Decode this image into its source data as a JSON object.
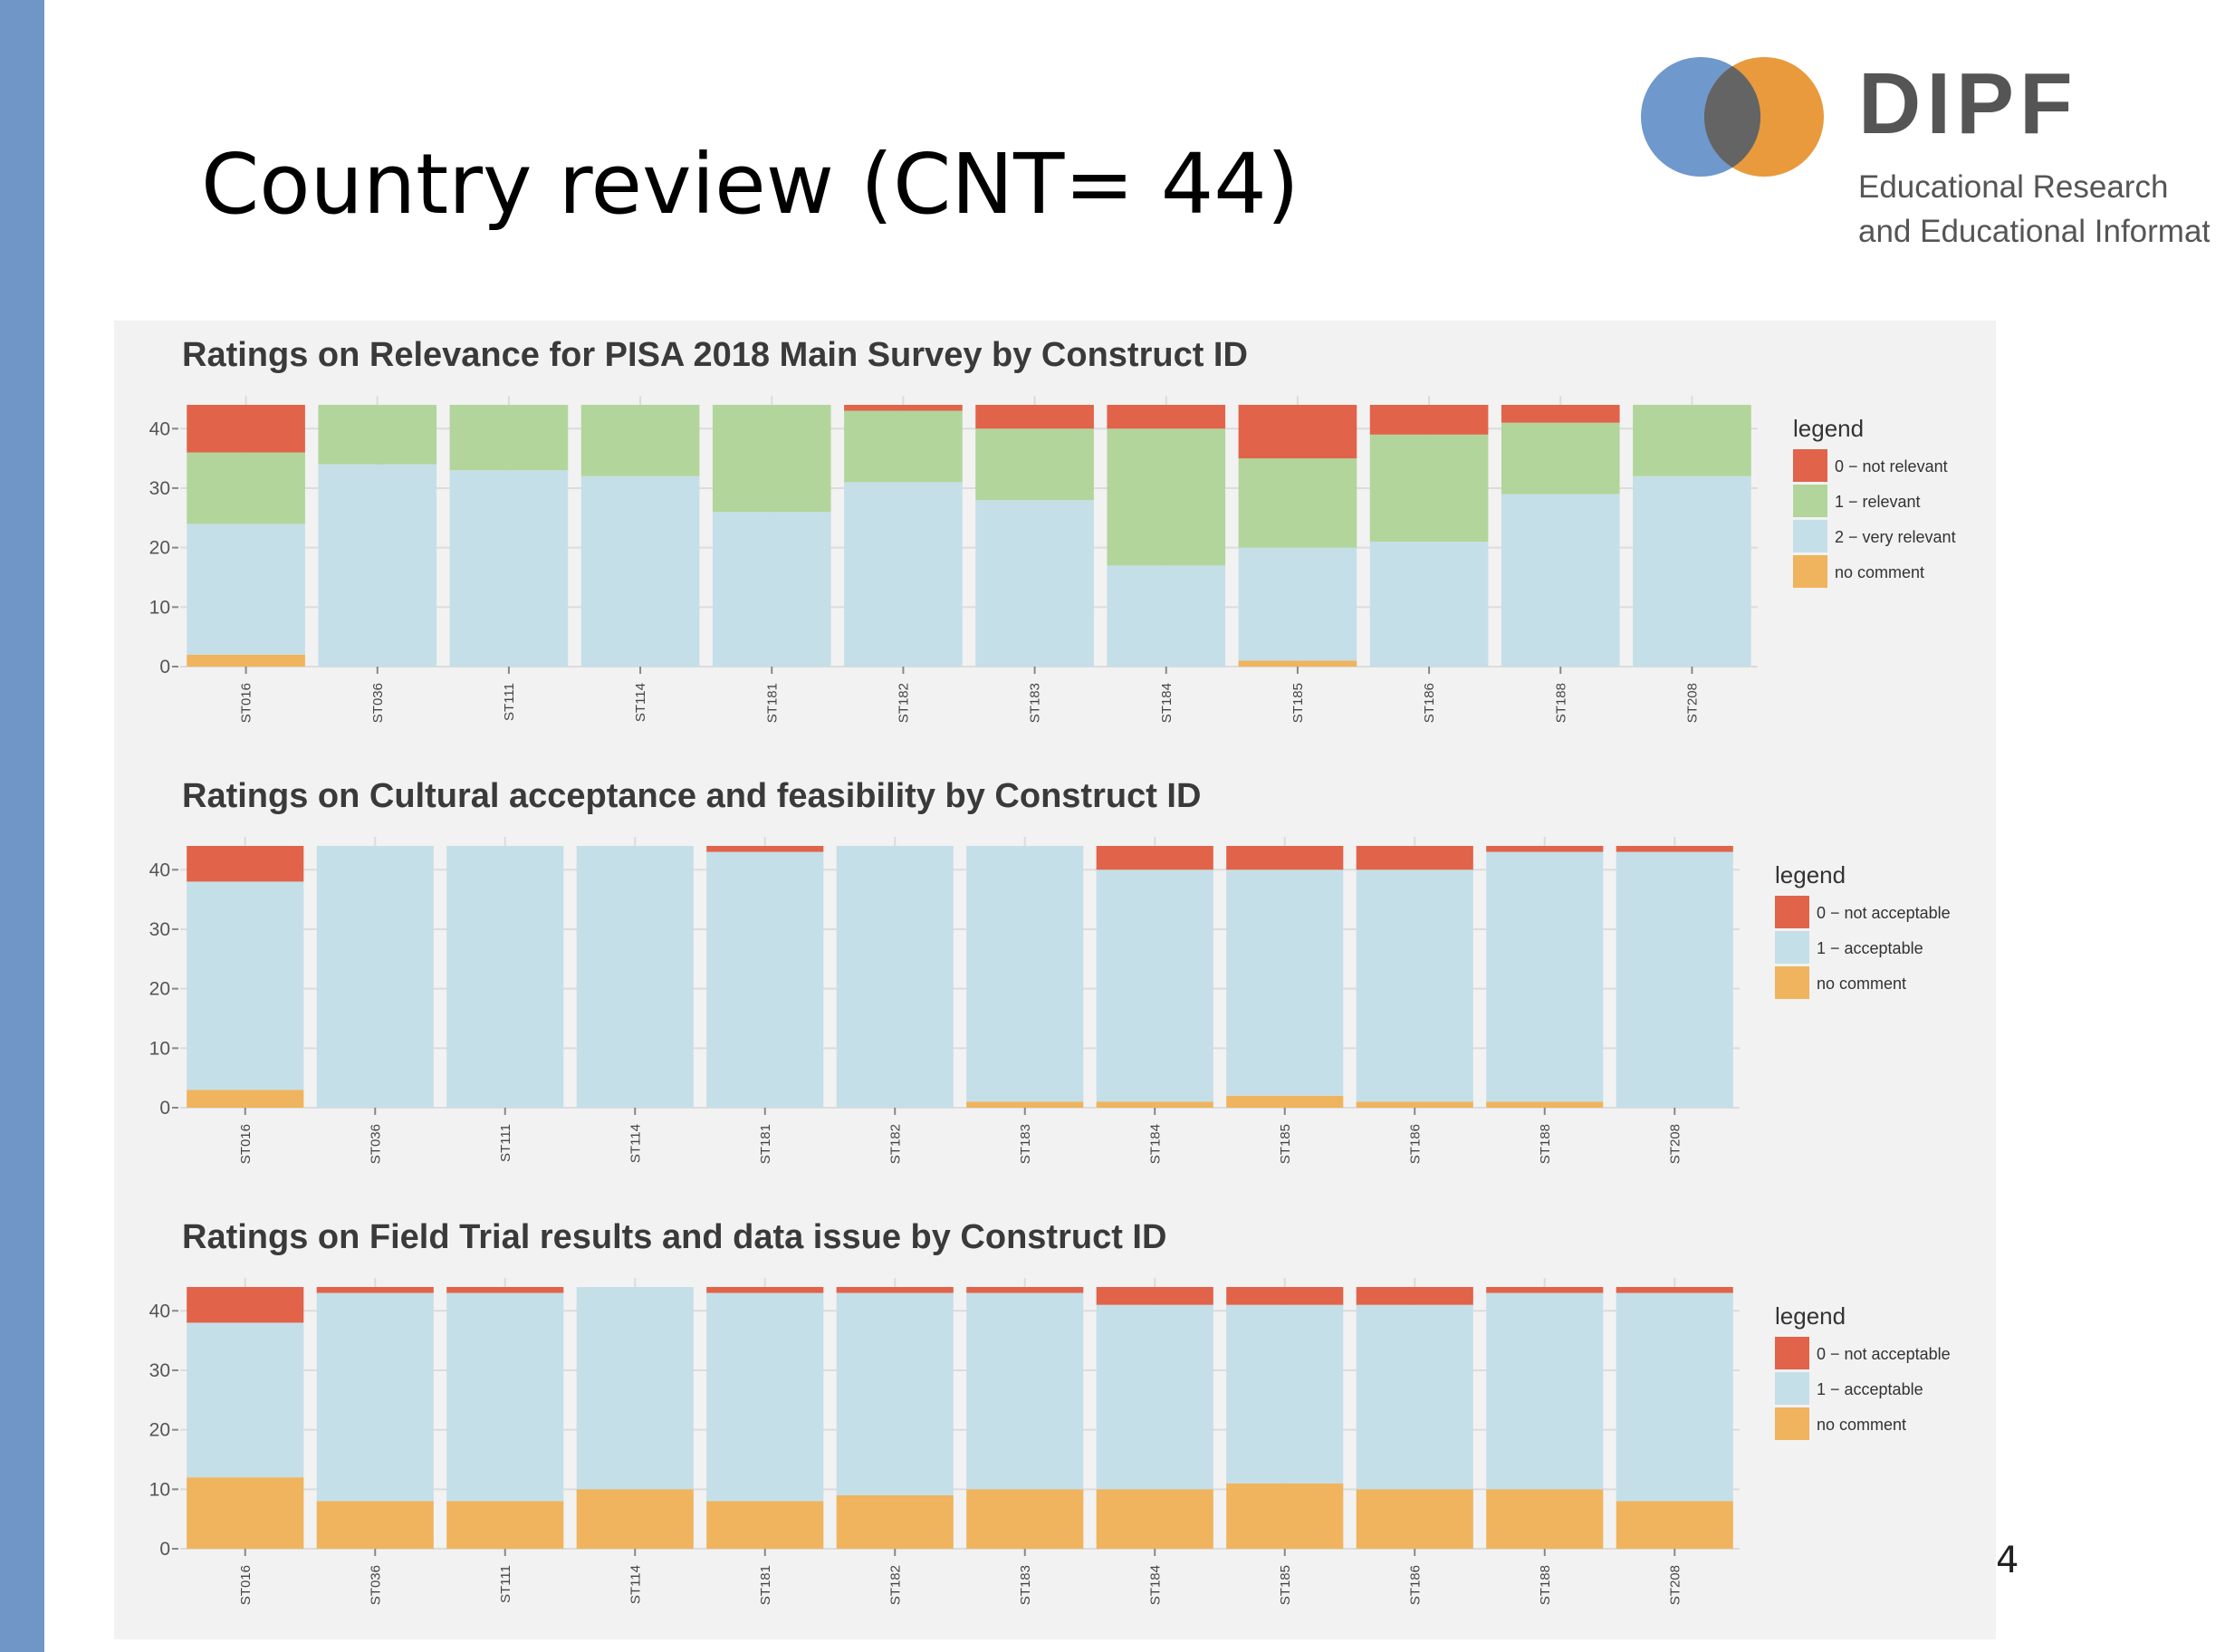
{
  "slide": {
    "title": "Country review (CNT= 44)",
    "page_number": "4",
    "accent_color": "#7096c8"
  },
  "logo": {
    "name": "DIPF",
    "line1": "Educational Research",
    "line2": "and Educational Information",
    "colors": {
      "blue": "#6f98cc",
      "orange": "#e89a3c",
      "overlap": "#646464",
      "text": "#555555"
    }
  },
  "chart_data": [
    {
      "type": "bar",
      "stacked": true,
      "title": "Ratings on Relevance for PISA 2018 Main Survey by Construct ID",
      "categories": [
        "ST016",
        "ST036",
        "ST111",
        "ST114",
        "ST181",
        "ST182",
        "ST183",
        "ST184",
        "ST185",
        "ST186",
        "ST188",
        "ST208"
      ],
      "ylim": [
        0,
        44
      ],
      "yticks": [
        0,
        10,
        20,
        30,
        40
      ],
      "grid": true,
      "legend_title": "legend",
      "legend_position": "right",
      "series": [
        {
          "name": "no comment",
          "color": "#efb45d",
          "values": [
            2,
            0,
            0,
            0,
            0,
            0,
            0,
            0,
            1,
            0,
            0,
            0
          ]
        },
        {
          "name": "2 − very relevant",
          "color": "#c5dfe8",
          "values": [
            22,
            34,
            33,
            32,
            26,
            31,
            28,
            17,
            19,
            21,
            29,
            32
          ]
        },
        {
          "name": "1 − relevant",
          "color": "#b2d59b",
          "values": [
            12,
            10,
            11,
            12,
            18,
            12,
            12,
            23,
            15,
            18,
            12,
            12
          ]
        },
        {
          "name": "0 − not relevant",
          "color": "#e0634a",
          "values": [
            8,
            0,
            0,
            0,
            0,
            1,
            4,
            4,
            9,
            5,
            3,
            0
          ]
        }
      ],
      "legend_order": [
        "0 − not relevant",
        "1 − relevant",
        "2 − very relevant",
        "no comment"
      ]
    },
    {
      "type": "bar",
      "stacked": true,
      "title": "Ratings on Cultural acceptance and feasibility by Construct ID",
      "categories": [
        "ST016",
        "ST036",
        "ST111",
        "ST114",
        "ST181",
        "ST182",
        "ST183",
        "ST184",
        "ST185",
        "ST186",
        "ST188",
        "ST208"
      ],
      "ylim": [
        0,
        44
      ],
      "yticks": [
        0,
        10,
        20,
        30,
        40
      ],
      "grid": true,
      "legend_title": "legend",
      "legend_position": "right",
      "series": [
        {
          "name": "no comment",
          "color": "#efb45d",
          "values": [
            3,
            0,
            0,
            0,
            0,
            0,
            1,
            1,
            2,
            1,
            1,
            0
          ]
        },
        {
          "name": "1 − acceptable",
          "color": "#c5dfe8",
          "values": [
            35,
            44,
            44,
            44,
            43,
            44,
            43,
            39,
            38,
            39,
            42,
            43
          ]
        },
        {
          "name": "0 − not acceptable",
          "color": "#e0634a",
          "values": [
            6,
            0,
            0,
            0,
            1,
            0,
            0,
            4,
            4,
            4,
            1,
            1
          ]
        }
      ],
      "legend_order": [
        "0 − not acceptable",
        "1 − acceptable",
        "no comment"
      ]
    },
    {
      "type": "bar",
      "stacked": true,
      "title": "Ratings on Field Trial results and data issue by Construct ID",
      "categories": [
        "ST016",
        "ST036",
        "ST111",
        "ST114",
        "ST181",
        "ST182",
        "ST183",
        "ST184",
        "ST185",
        "ST186",
        "ST188",
        "ST208"
      ],
      "ylim": [
        0,
        44
      ],
      "yticks": [
        0,
        10,
        20,
        30,
        40
      ],
      "grid": true,
      "legend_title": "legend",
      "legend_position": "right",
      "series": [
        {
          "name": "no comment",
          "color": "#efb45d",
          "values": [
            12,
            8,
            8,
            10,
            8,
            9,
            10,
            10,
            11,
            10,
            10,
            8
          ]
        },
        {
          "name": "1 − acceptable",
          "color": "#c5dfe8",
          "values": [
            26,
            35,
            35,
            34,
            35,
            34,
            33,
            31,
            30,
            31,
            33,
            35
          ]
        },
        {
          "name": "0 − not acceptable",
          "color": "#e0634a",
          "values": [
            6,
            1,
            1,
            0,
            1,
            1,
            1,
            3,
            3,
            3,
            1,
            1
          ]
        }
      ],
      "legend_order": [
        "0 − not acceptable",
        "1 − acceptable",
        "no comment"
      ]
    }
  ]
}
